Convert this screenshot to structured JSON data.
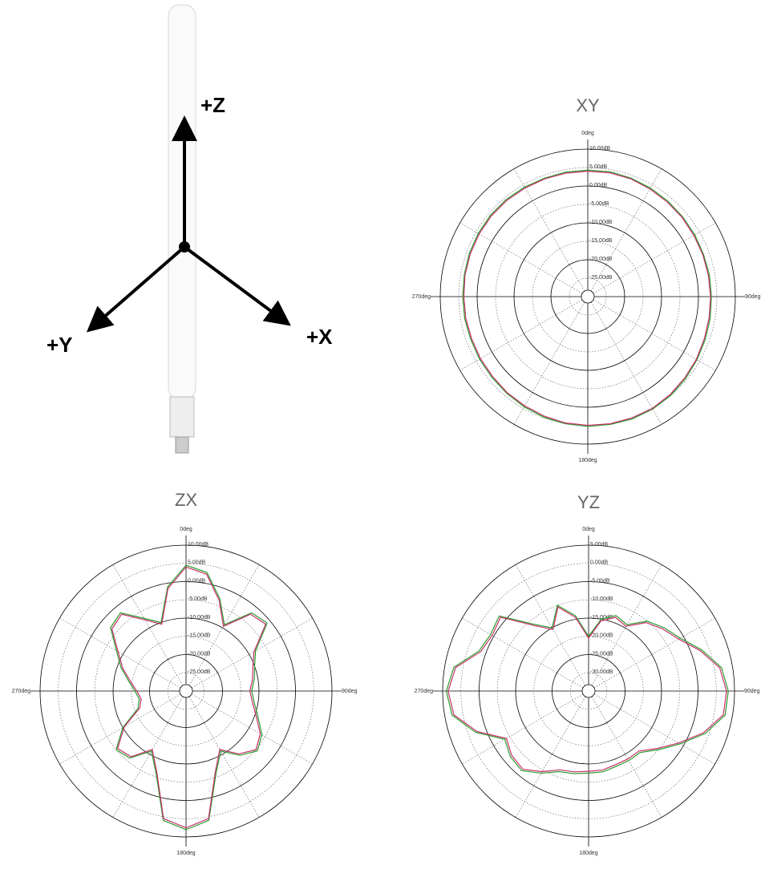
{
  "diagram": {
    "axes": [
      "+Z",
      "+Y",
      "+X"
    ]
  },
  "chart_data": [
    {
      "type": "polar",
      "title": "XY",
      "theta": [
        0,
        10,
        20,
        30,
        40,
        50,
        60,
        70,
        80,
        90,
        100,
        110,
        120,
        130,
        140,
        150,
        160,
        170,
        180,
        190,
        200,
        210,
        220,
        230,
        240,
        250,
        260,
        270,
        280,
        290,
        300,
        310,
        320,
        330,
        340,
        350
      ],
      "thetaticks": [
        {
          "value": 0,
          "label": "0deg"
        },
        {
          "value": 90,
          "label": "90deg"
        },
        {
          "value": 180,
          "label": "180deg"
        },
        {
          "value": 270,
          "label": "270deg"
        }
      ],
      "thetagrid_step": 30,
      "rlim": [
        -30,
        10
      ],
      "rticks": [
        {
          "value": 10,
          "label": "10.00dB"
        },
        {
          "value": 5,
          "label": "5.00dB"
        },
        {
          "value": 0,
          "label": "0.00dB"
        },
        {
          "value": -5,
          "label": "-5.00dB"
        },
        {
          "value": -10,
          "label": "-10.00dB"
        },
        {
          "value": -15,
          "label": "-15.00dB"
        },
        {
          "value": -20,
          "label": "-20.00dB"
        },
        {
          "value": -25,
          "label": "-25.00dB"
        }
      ],
      "series": [
        {
          "color": "#2a9a2a",
          "values": [
            4.3,
            4.4,
            4.2,
            4.0,
            3.8,
            3.6,
            3.5,
            3.4,
            3.5,
            3.5,
            3.7,
            3.9,
            4.2,
            4.6,
            5.0,
            5.2,
            5.3,
            5.2,
            5.2,
            5.0,
            4.8,
            4.5,
            4.2,
            4.0,
            3.9,
            3.8,
            3.9,
            3.9,
            4.0,
            4.2,
            4.3,
            4.4,
            4.4,
            4.3,
            4.2,
            4.3
          ]
        },
        {
          "color": "#c8306a",
          "values": [
            4.0,
            4.1,
            4.0,
            3.7,
            3.5,
            3.4,
            3.2,
            3.2,
            3.2,
            3.3,
            3.4,
            3.6,
            4.0,
            4.3,
            4.7,
            5.0,
            5.0,
            5.0,
            4.9,
            4.8,
            4.5,
            4.2,
            4.0,
            3.7,
            3.6,
            3.5,
            3.6,
            3.6,
            3.8,
            3.9,
            4.0,
            4.1,
            4.1,
            4.0,
            4.0,
            4.0
          ]
        }
      ]
    },
    {
      "type": "polar",
      "title": "ZX",
      "theta": [
        0,
        10,
        20,
        30,
        40,
        50,
        60,
        70,
        80,
        90,
        100,
        110,
        120,
        130,
        140,
        150,
        160,
        170,
        180,
        190,
        200,
        210,
        220,
        230,
        240,
        250,
        260,
        270,
        280,
        290,
        300,
        310,
        320,
        330,
        340,
        350
      ],
      "thetaticks": [
        {
          "value": 0,
          "label": "0deg"
        },
        {
          "value": 90,
          "label": "90deg"
        },
        {
          "value": 180,
          "label": "180deg"
        },
        {
          "value": 270,
          "label": "270deg"
        }
      ],
      "thetagrid_step": 30,
      "rlim": [
        -30,
        10
      ],
      "rticks": [
        {
          "value": 10,
          "label": "10.00dB"
        },
        {
          "value": 5,
          "label": "5.00dB"
        },
        {
          "value": 0,
          "label": "0.00dB"
        },
        {
          "value": -5,
          "label": "-5.00dB"
        },
        {
          "value": -10,
          "label": "-10.00dB"
        },
        {
          "value": -15,
          "label": "-15.00dB"
        },
        {
          "value": -20,
          "label": "-20.00dB"
        },
        {
          "value": -25,
          "label": "-25.00dB"
        }
      ],
      "series": [
        {
          "color": "#2a9a2a",
          "values": [
            4.5,
            3,
            -3,
            -9,
            -2,
            -1,
            -8,
            -10,
            -11,
            -12,
            -11,
            -9,
            -6,
            -4.5,
            -7,
            -11,
            -6,
            6,
            8,
            6,
            -6,
            -11,
            -6,
            -5,
            -10,
            -16,
            -17,
            -16,
            -14,
            -11,
            -8,
            -3,
            -2,
            -7,
            -10,
            -1
          ]
        },
        {
          "color": "#c8306a",
          "values": [
            4,
            2.5,
            -3.5,
            -9.5,
            -2.5,
            -1.5,
            -8.5,
            -10.5,
            -11.5,
            -12.5,
            -11.5,
            -9.5,
            -6.5,
            -5,
            -7.5,
            -11.5,
            -6.5,
            5.5,
            7.5,
            5.5,
            -6.5,
            -11.5,
            -6.5,
            -5.5,
            -10.5,
            -16.5,
            -17.5,
            -16.5,
            -14.5,
            -11.5,
            -8.5,
            -3.5,
            -2.5,
            -7.5,
            -10.5,
            -1.5
          ]
        }
      ]
    },
    {
      "type": "polar",
      "title": "YZ",
      "theta": [
        0,
        10,
        20,
        30,
        40,
        50,
        60,
        70,
        80,
        90,
        100,
        110,
        120,
        130,
        140,
        150,
        160,
        170,
        180,
        190,
        200,
        210,
        220,
        230,
        240,
        250,
        260,
        270,
        280,
        290,
        300,
        310,
        320,
        330,
        340,
        350
      ],
      "thetaticks": [
        {
          "value": 0,
          "label": "0deg"
        },
        {
          "value": 90,
          "label": "90deg"
        },
        {
          "value": 180,
          "label": "180deg"
        },
        {
          "value": 270,
          "label": "270deg"
        }
      ],
      "thetagrid_step": 30,
      "rlim": [
        -35,
        5
      ],
      "rticks": [
        {
          "value": 5,
          "label": "5.00dB"
        },
        {
          "value": 0,
          "label": "0.00dB"
        },
        {
          "value": -5,
          "label": "-5.00dB"
        },
        {
          "value": -10,
          "label": "-10.00dB"
        },
        {
          "value": -15,
          "label": "-15.00dB"
        },
        {
          "value": -20,
          "label": "-20.00dB"
        },
        {
          "value": -25,
          "label": "-25.00dB"
        },
        {
          "value": -30,
          "label": "-30.00dB"
        }
      ],
      "series": [
        {
          "color": "#2a9a2a",
          "values": [
            -20,
            -15,
            -13,
            -14,
            -10,
            -8,
            -6,
            -2,
            2,
            3.3,
            3,
            -1,
            -6,
            -10,
            -13,
            -13,
            -13,
            -12.5,
            -12.5,
            -12,
            -11.5,
            -9,
            -6.5,
            -7,
            -8.5,
            -2,
            3,
            4,
            2.5,
            -3,
            -4,
            -3,
            -11,
            -15,
            -10,
            -14
          ]
        },
        {
          "color": "#c8306a",
          "values": [
            -20.5,
            -15.5,
            -13.5,
            -14.5,
            -10.5,
            -8.5,
            -6.5,
            -2.5,
            1.5,
            2.8,
            2.5,
            -1.5,
            -6.5,
            -10.5,
            -13.5,
            -13.5,
            -13.5,
            -13,
            -13,
            -12.5,
            -12,
            -9.5,
            -7,
            -7.5,
            -9,
            -2.5,
            2.5,
            3.5,
            2,
            -3.5,
            -4.5,
            -3.5,
            -11.5,
            -15.5,
            -10.5,
            -14.5
          ]
        }
      ]
    }
  ]
}
